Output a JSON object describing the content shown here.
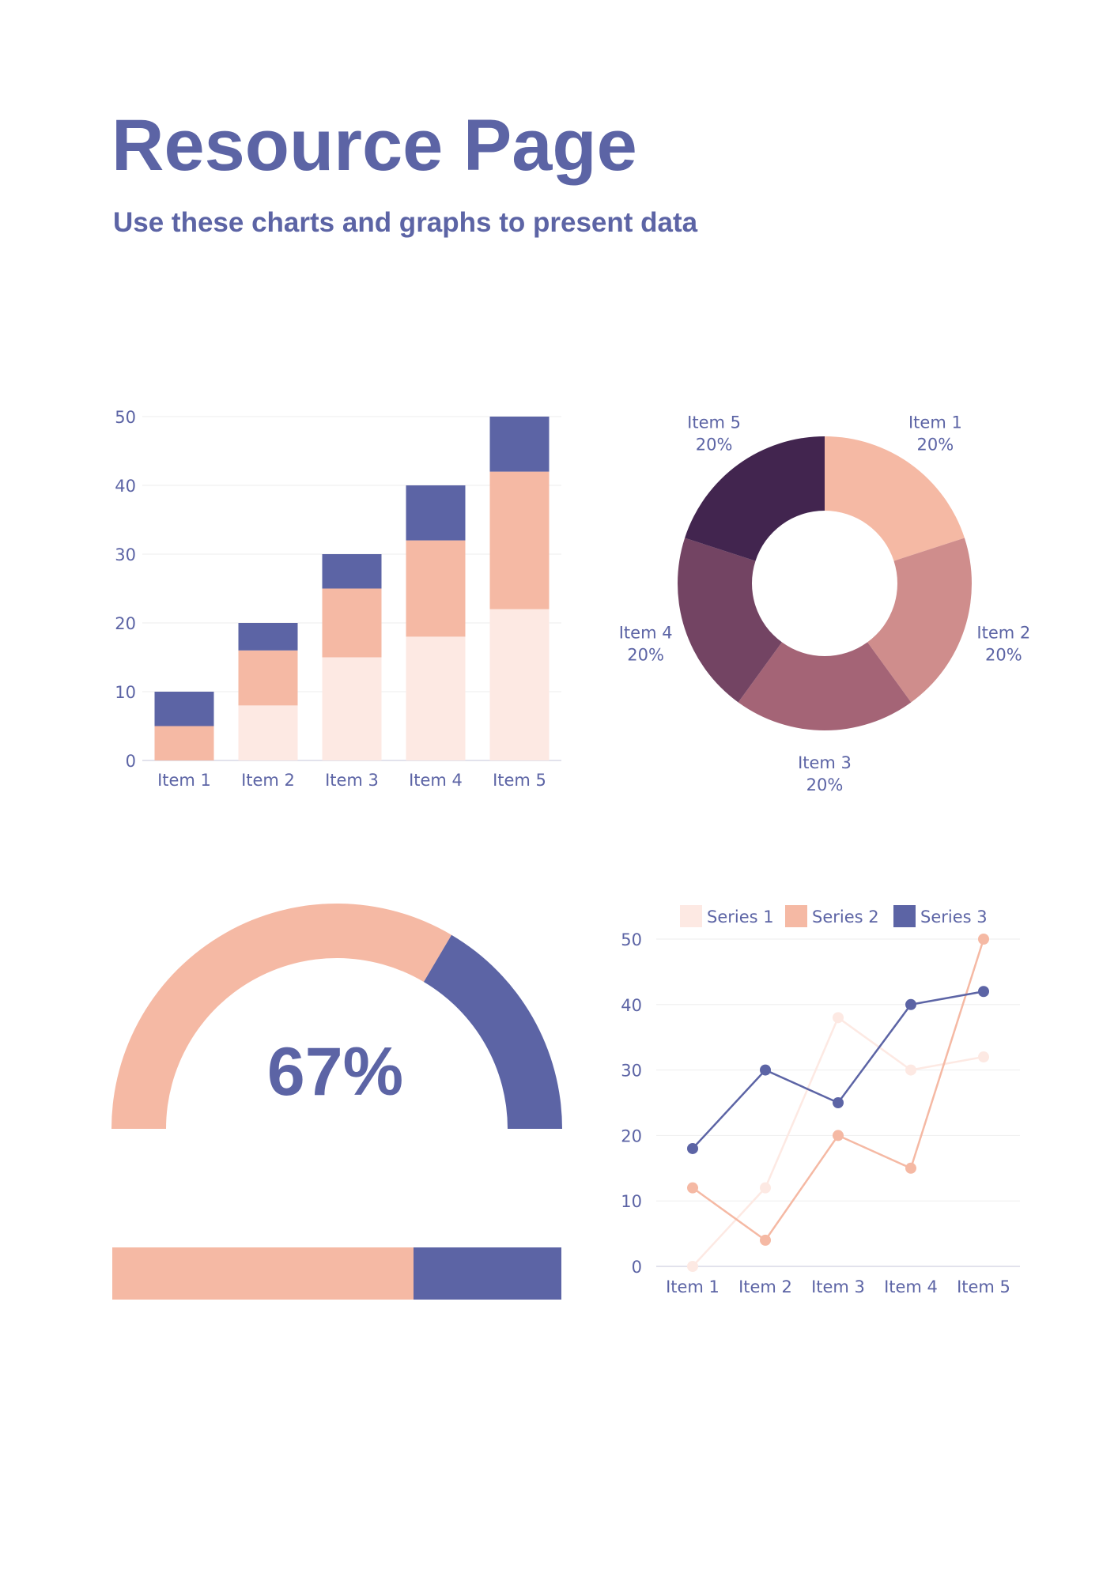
{
  "page": {
    "title": "Resource Page",
    "subtitle": "Use these charts and graphs to present data"
  },
  "colors": {
    "text": "#5c64a5",
    "peach": "#f5b9a4",
    "light_peach": "#fde9e3",
    "navy": "#5c64a5",
    "grid": "#eeeeee",
    "donut": [
      "#f5b9a4",
      "#cf8d8c",
      "#a46476",
      "#734463",
      "#42254f"
    ]
  },
  "chart_data": [
    {
      "type": "bar",
      "stacked": true,
      "categories": [
        "Item 1",
        "Item 2",
        "Item 3",
        "Item 4",
        "Item 5"
      ],
      "series": [
        {
          "values": [
            0,
            8,
            15,
            18,
            22
          ],
          "color": "#fde9e3"
        },
        {
          "values": [
            5,
            8,
            10,
            14,
            20
          ],
          "color": "#f5b9a4"
        },
        {
          "values": [
            5,
            4,
            5,
            8,
            8
          ],
          "color": "#5c64a5"
        }
      ],
      "yticks": [
        "0",
        "10",
        "20",
        "30",
        "40",
        "50"
      ],
      "ylim": [
        0,
        50
      ],
      "grid": true
    },
    {
      "type": "pie",
      "donut": true,
      "slices": [
        {
          "label": "Item 1",
          "value": 20,
          "pct": "20%"
        },
        {
          "label": "Item 2",
          "value": 20,
          "pct": "20%"
        },
        {
          "label": "Item 3",
          "value": 20,
          "pct": "20%"
        },
        {
          "label": "Item 4",
          "value": 20,
          "pct": "20%"
        },
        {
          "label": "Item 5",
          "value": 20,
          "pct": "20%"
        }
      ]
    },
    {
      "type": "gauge",
      "value": 67,
      "label": "67%",
      "colors": [
        "#f5b9a4",
        "#5c64a5"
      ]
    },
    {
      "type": "progress",
      "value": 67,
      "colors": [
        "#f5b9a4",
        "#5c64a5"
      ]
    },
    {
      "type": "line",
      "categories": [
        "Item 1",
        "Item 2",
        "Item 3",
        "Item 4",
        "Item 5"
      ],
      "series": [
        {
          "name": "Series 1",
          "values": [
            0,
            12,
            38,
            30,
            32
          ],
          "color": "#fde9e3"
        },
        {
          "name": "Series 2",
          "values": [
            12,
            4,
            20,
            15,
            50
          ],
          "color": "#f5b9a4"
        },
        {
          "name": "Series 3",
          "values": [
            18,
            30,
            25,
            40,
            42
          ],
          "color": "#5c64a5"
        }
      ],
      "yticks": [
        "0",
        "10",
        "20",
        "30",
        "40",
        "50"
      ],
      "ylim": [
        0,
        50
      ],
      "legend": "top",
      "grid": true
    }
  ]
}
